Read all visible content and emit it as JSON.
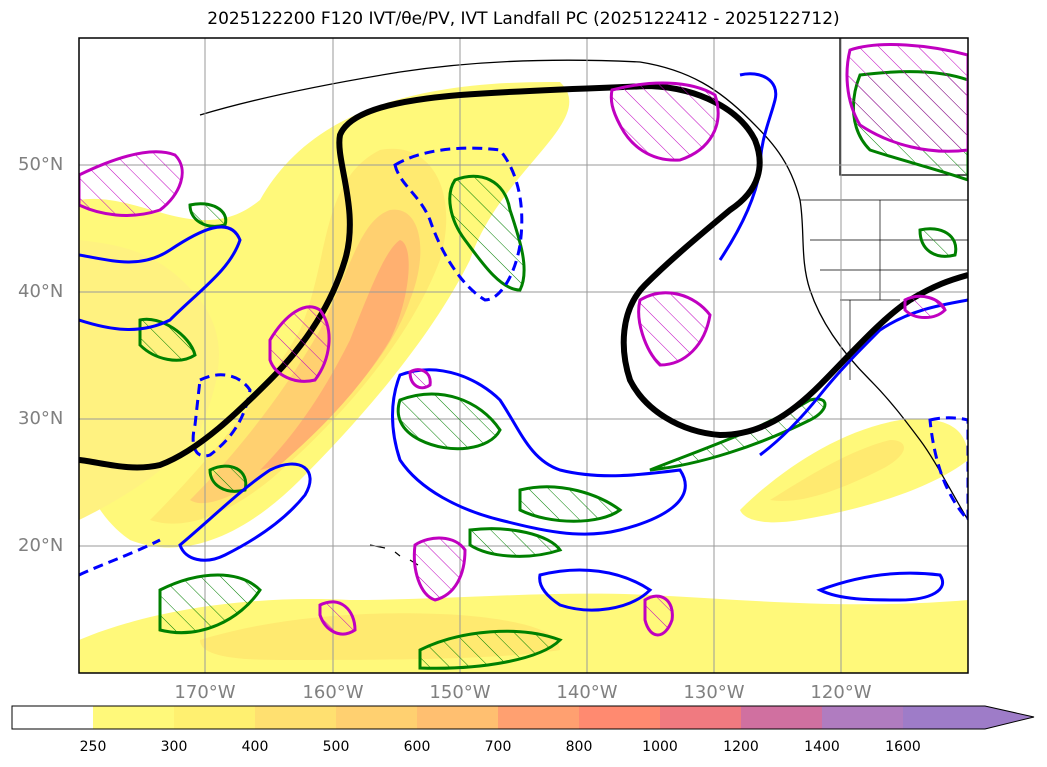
{
  "title": "2025122200 F120 IVT/θe/PV, IVT Landfall PC (2025122412 - 2025122712)",
  "lat_labels": [
    "50°N",
    "40°N",
    "30°N",
    "20°N"
  ],
  "lon_labels": [
    "170°W",
    "160°W",
    "150°W",
    "140°W",
    "130°W",
    "120°W"
  ],
  "colorbar": {
    "ticks": [
      "250",
      "300",
      "400",
      "500",
      "600",
      "700",
      "800",
      "1000",
      "1200",
      "1400",
      "1600"
    ],
    "colors": [
      "#ffffff",
      "#fff97a",
      "#fff070",
      "#ffe070",
      "#ffd070",
      "#ffbf70",
      "#ffa070",
      "#ff8a70",
      "#f07a80",
      "#d070a0",
      "#b07cc0",
      "#9e7cc8"
    ],
    "extend": "max"
  },
  "contour_colors": {
    "ivt_shading": "#ffe66e",
    "thick_contour": "#000000",
    "pv": "#0000ff",
    "theta_e": "#008000",
    "landfall": "#c000c0"
  }
}
